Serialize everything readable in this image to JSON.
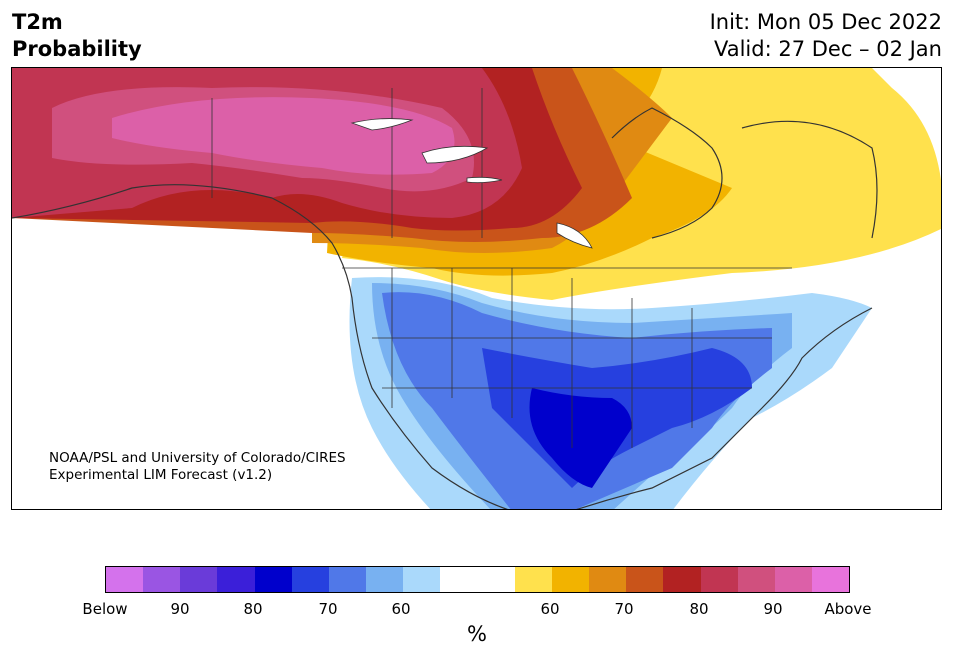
{
  "header": {
    "title_line1": "T2m",
    "title_line2": "Probability",
    "init_text": "Init: Mon 05 Dec 2022",
    "valid_text": "Valid: 27 Dec – 02 Jan"
  },
  "credit": {
    "line1": "NOAA/PSL and University of Colorado/CIRES",
    "line2": "Experimental LIM Forecast (v1.2)"
  },
  "colorbar": {
    "unit": "%",
    "colors": [
      "#d472ec",
      "#9a55e3",
      "#6a3bd9",
      "#3b1fd9",
      "#0000cc",
      "#2640df",
      "#5078e8",
      "#78b1f1",
      "#aad9fb",
      "#ffffff",
      "#ffffff",
      "#ffe14d",
      "#f2b300",
      "#e08a12",
      "#c9541a",
      "#b22222",
      "#c13552",
      "#d0507e",
      "#dc60a8",
      "#e873dc"
    ],
    "labels": [
      "Below",
      "90",
      "80",
      "70",
      "60",
      "60",
      "70",
      "80",
      "90",
      "Above"
    ]
  },
  "map_colors": {
    "above_90": "#dc60a8",
    "above_85": "#d0507e",
    "above_80": "#c13552",
    "above_75": "#b22222",
    "above_70": "#c9541a",
    "above_65": "#e08a12",
    "above_60": "#f2b300",
    "above_55": "#ffe14d",
    "below_55": "#aad9fb",
    "below_60": "#78b1f1",
    "below_65": "#5078e8",
    "below_70": "#2640df",
    "below_75": "#0000cc",
    "lines": "#333333"
  }
}
